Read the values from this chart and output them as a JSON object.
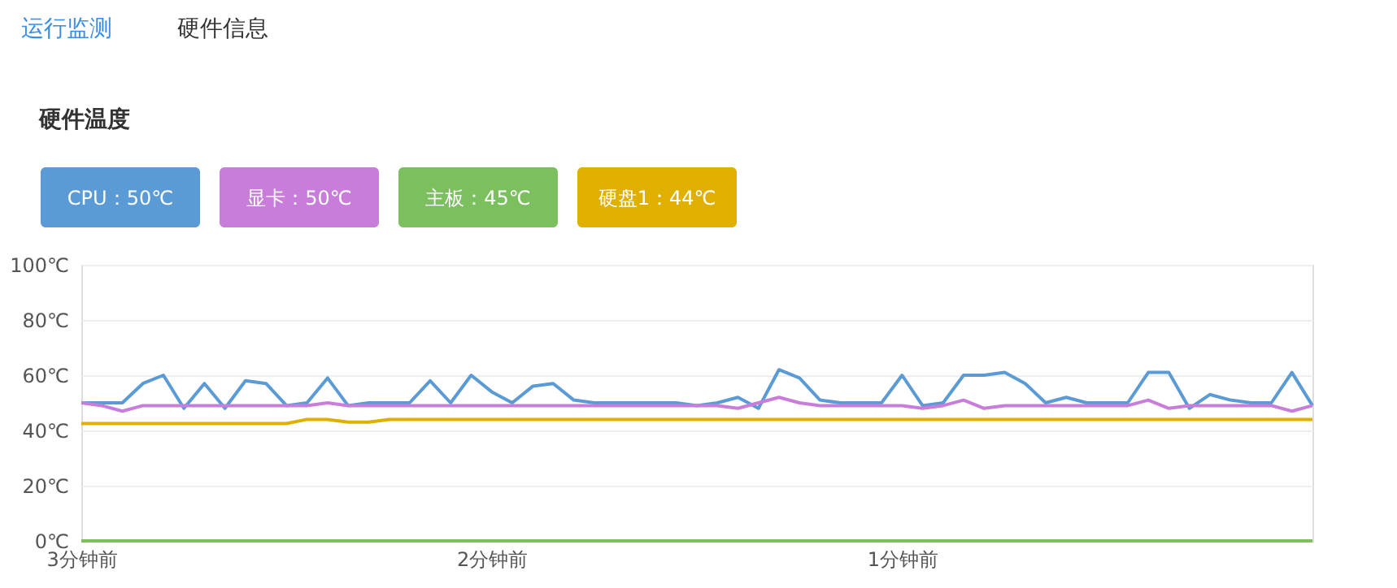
{
  "chart_data": {
    "type": "line",
    "title": "硬件温度",
    "annotations": [
      "运行监测",
      "硬件信息"
    ],
    "legend": "top",
    "grid": "y",
    "line_style": "solid",
    "marker": "none",
    "categories": [
      "3分钟前",
      null,
      null,
      null,
      null,
      null,
      null,
      null,
      null,
      null,
      null,
      null,
      null,
      null,
      null,
      null,
      null,
      null,
      null,
      null,
      "2分钟前",
      null,
      null,
      null,
      null,
      null,
      null,
      null,
      null,
      null,
      null,
      null,
      null,
      null,
      null,
      null,
      null,
      null,
      null,
      null,
      "1分钟前",
      null,
      null,
      null,
      null,
      null,
      null,
      null,
      null,
      null,
      null,
      null,
      null,
      null,
      null,
      null,
      null,
      null,
      null,
      null,
      null
    ],
    "ylim": [
      0,
      100
    ],
    "yticks": [
      {
        "value": 0,
        "label": "0℃"
      },
      {
        "value": 20,
        "label": "20℃"
      },
      {
        "value": 40,
        "label": "40℃"
      },
      {
        "value": 60,
        "label": "60℃"
      },
      {
        "value": 80,
        "label": "80℃"
      },
      {
        "value": 100,
        "label": "100℃"
      }
    ],
    "series": [
      {
        "name": "CPU：50℃",
        "color": "#5b9bd5",
        "values": [
          50,
          50,
          50,
          57,
          60,
          48,
          57,
          48,
          58,
          57,
          49,
          50,
          59,
          49,
          50,
          50,
          50,
          58,
          50,
          60,
          54,
          50,
          56,
          57,
          51,
          50,
          50,
          50,
          50,
          50,
          49,
          50,
          52,
          48,
          62,
          59,
          51,
          50,
          50,
          50,
          60,
          49,
          50,
          60,
          60,
          61,
          57,
          50,
          52,
          50,
          50,
          50,
          61,
          61,
          48,
          53,
          51,
          50,
          50,
          61,
          49
        ]
      },
      {
        "name": "显卡：50℃",
        "color": "#c97ddb",
        "values": [
          50,
          49,
          47,
          49,
          49,
          49,
          49,
          49,
          49,
          49,
          49,
          49,
          50,
          49,
          49,
          49,
          49,
          49,
          49,
          49,
          49,
          49,
          49,
          49,
          49,
          49,
          49,
          49,
          49,
          49,
          49,
          49,
          48,
          50,
          52,
          50,
          49,
          49,
          49,
          49,
          49,
          48,
          49,
          51,
          48,
          49,
          49,
          49,
          49,
          49,
          49,
          49,
          51,
          48,
          49,
          49,
          49,
          49,
          49,
          47,
          49
        ]
      },
      {
        "name": "主板：45℃",
        "color": "#7cbf5f",
        "values": [
          0,
          0,
          0,
          0,
          0,
          0,
          0,
          0,
          0,
          0,
          0,
          0,
          0,
          0,
          0,
          0,
          0,
          0,
          0,
          0,
          0,
          0,
          0,
          0,
          0,
          0,
          0,
          0,
          0,
          0,
          0,
          0,
          0,
          0,
          0,
          0,
          0,
          0,
          0,
          0,
          0,
          0,
          0,
          0,
          0,
          0,
          0,
          0,
          0,
          0,
          0,
          0,
          0,
          0,
          0,
          0,
          0,
          0,
          0,
          0,
          0
        ]
      },
      {
        "name": "硬盘1：44℃",
        "color": "#e0b000",
        "values": [
          42.5,
          42.5,
          42.5,
          42.5,
          42.5,
          42.5,
          42.5,
          42.5,
          42.5,
          42.5,
          42.5,
          44,
          44,
          43,
          43,
          44,
          44,
          44,
          44,
          44,
          44,
          44,
          44,
          44,
          44,
          44,
          44,
          44,
          44,
          44,
          44,
          44,
          44,
          44,
          44,
          44,
          44,
          44,
          44,
          44,
          44,
          44,
          44,
          44,
          44,
          44,
          44,
          44,
          44,
          44,
          44,
          44,
          44,
          44,
          44,
          44,
          44,
          44,
          44,
          44,
          44
        ]
      }
    ]
  }
}
